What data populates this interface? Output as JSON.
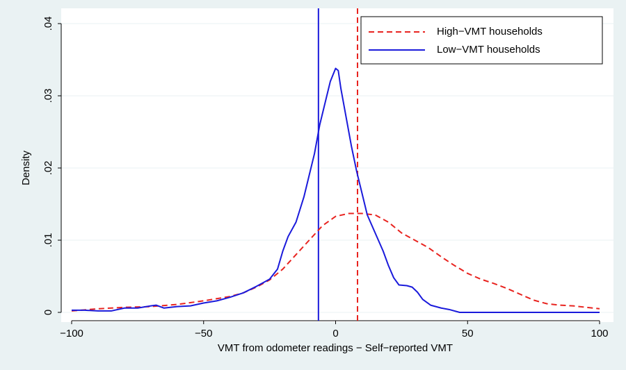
{
  "chart_data": {
    "type": "line",
    "xlabel": "VMT from odometer readings − Self−reported VMT",
    "ylabel": "Density",
    "xlim": [
      -100,
      100
    ],
    "ylim": [
      0,
      0.04
    ],
    "xticks": [
      {
        "value": -100,
        "label": "−100"
      },
      {
        "value": -50,
        "label": "−50"
      },
      0,
      50,
      100
    ],
    "yticks": [
      0,
      {
        "value": 0.01,
        "label": ".01"
      },
      {
        "value": 0.02,
        "label": ".02"
      },
      {
        "value": 0.03,
        "label": ".03"
      },
      {
        "value": 0.04,
        "label": ".04"
      }
    ],
    "grid": true,
    "legend": "top-right",
    "series": [
      {
        "name": "High−VMT households",
        "color": "#e8231f",
        "dashed": true,
        "x": [
          -100,
          -90,
          -80,
          -70,
          -60,
          -50,
          -40,
          -35,
          -30,
          -25,
          -20,
          -15,
          -10,
          -5,
          0,
          5,
          10,
          15,
          20,
          25,
          30,
          35,
          40,
          45,
          50,
          55,
          60,
          65,
          70,
          75,
          80,
          85,
          90,
          95,
          100
        ],
        "values": [
          0.0002,
          0.0005,
          0.0007,
          0.0008,
          0.0011,
          0.0016,
          0.0022,
          0.0027,
          0.0035,
          0.0045,
          0.006,
          0.008,
          0.01,
          0.012,
          0.0133,
          0.0137,
          0.0137,
          0.0135,
          0.0125,
          0.011,
          0.01,
          0.009,
          0.0077,
          0.0065,
          0.0054,
          0.0046,
          0.004,
          0.0033,
          0.0025,
          0.0017,
          0.0012,
          0.001,
          0.0009,
          0.0007,
          0.0005
        ]
      },
      {
        "name": "Low−VMT households",
        "color": "#1a1adb",
        "dashed": false,
        "x": [
          -100,
          -95,
          -90,
          -85,
          -80,
          -75,
          -70,
          -68,
          -65,
          -60,
          -55,
          -50,
          -45,
          -40,
          -35,
          -30,
          -25,
          -22,
          -20,
          -18,
          -15,
          -12,
          -10,
          -8,
          -6,
          -4,
          -2,
          0,
          1,
          2,
          4,
          6,
          8,
          10,
          12,
          15,
          18,
          20,
          22,
          24,
          27,
          29,
          31,
          33,
          36,
          40,
          43,
          47,
          50,
          60,
          70,
          80,
          90,
          100
        ],
        "values": [
          0.0003,
          0.0003,
          0.0002,
          0.0002,
          0.0006,
          0.0006,
          0.0009,
          0.001,
          0.0006,
          0.0008,
          0.0009,
          0.0013,
          0.0016,
          0.0021,
          0.0027,
          0.0036,
          0.0046,
          0.006,
          0.0085,
          0.0105,
          0.0125,
          0.016,
          0.019,
          0.022,
          0.026,
          0.029,
          0.032,
          0.0338,
          0.0335,
          0.031,
          0.027,
          0.023,
          0.0195,
          0.0165,
          0.0135,
          0.011,
          0.0085,
          0.0065,
          0.0048,
          0.0038,
          0.0037,
          0.0035,
          0.0028,
          0.0018,
          0.001,
          0.0006,
          0.0004,
          0,
          0,
          0,
          0,
          0,
          0,
          0
        ]
      }
    ],
    "reference_lines": [
      {
        "x": 8.3,
        "color": "#e8231f",
        "dashed": true
      },
      {
        "x": -6.5,
        "color": "#1a1adb",
        "dashed": false
      }
    ]
  }
}
